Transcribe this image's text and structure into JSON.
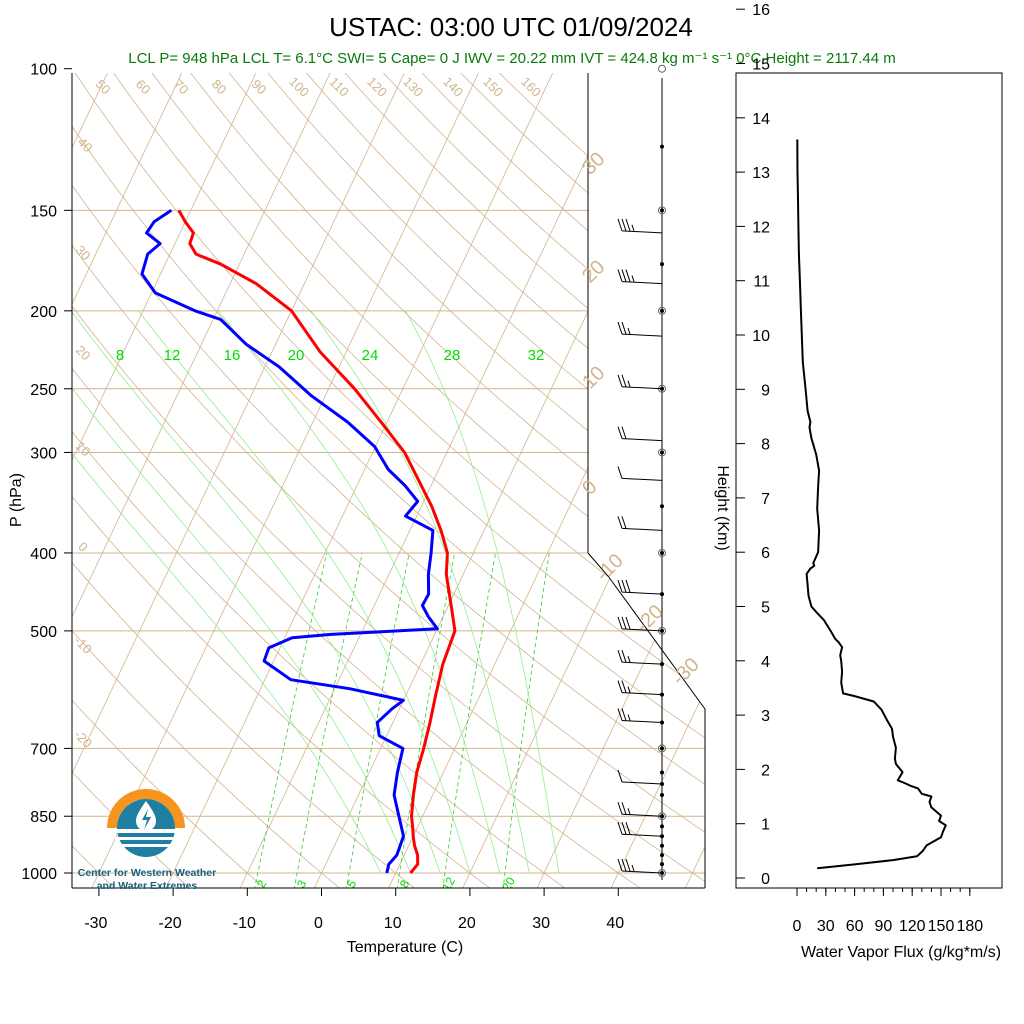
{
  "header": {
    "title": "USTAC: 03:00 UTC 01/09/2024",
    "subtitle": "LCL P= 948 hPa  LCL T= 6.1°C  SWI= 5  Cape= 0 J  IWV = 20.22 mm  IVT = 424.8 kg m⁻¹ s⁻¹  0°C Height = 2117.44 m"
  },
  "logo": {
    "line1": "Center for Western Weather",
    "line2": "and Water Extremes"
  },
  "colors": {
    "temperature": "#ff0000",
    "dewpoint": "#0000ff",
    "dry_adiabat": "#d2b48c",
    "isotherm": "#d2b48c",
    "moist_adiabat": "#90ee90",
    "mixing_ratio": "#32cd32",
    "flux": "#000000",
    "logo_orange": "#f7941d",
    "logo_blue": "#1f7fa3"
  },
  "chart_data": [
    {
      "type": "line",
      "subtype": "skew-t log-p",
      "xlabel": "Temperature (C)",
      "ylabel": "P (hPa)",
      "x_ticks": [
        -30,
        -20,
        -10,
        0,
        10,
        20,
        30,
        40
      ],
      "y_ticks": [
        100,
        150,
        200,
        250,
        300,
        400,
        500,
        700,
        850,
        1000
      ],
      "y_scale": "log",
      "ylim": [
        1000,
        100
      ],
      "xlim": [
        -35,
        47
      ],
      "series": [
        {
          "name": "Temperature",
          "color": "#ff0000",
          "points": [
            [
              12.0,
              1000
            ],
            [
              12.4,
              975
            ],
            [
              11.8,
              950
            ],
            [
              10.8,
              925
            ],
            [
              10.0,
              900
            ],
            [
              9.3,
              875
            ],
            [
              8.5,
              850
            ],
            [
              7.4,
              800
            ],
            [
              6.4,
              750
            ],
            [
              5.8,
              700
            ],
            [
              5.0,
              650
            ],
            [
              4.0,
              600
            ],
            [
              3.0,
              550
            ],
            [
              2.5,
              500
            ],
            [
              1.0,
              475
            ],
            [
              -0.6,
              450
            ],
            [
              -2.3,
              425
            ],
            [
              -3.5,
              400
            ],
            [
              -5.8,
              375
            ],
            [
              -8.6,
              350
            ],
            [
              -12.0,
              325
            ],
            [
              -15.7,
              300
            ],
            [
              -20.8,
              275
            ],
            [
              -26.5,
              250
            ],
            [
              -33.5,
              225
            ],
            [
              -40.0,
              200
            ],
            [
              -46.5,
              185
            ],
            [
              -52.5,
              175
            ],
            [
              -56.5,
              170
            ],
            [
              -58.0,
              165
            ],
            [
              -58.2,
              160
            ],
            [
              -60.0,
              155
            ],
            [
              -61.6,
              150
            ]
          ]
        },
        {
          "name": "Dewpoint",
          "color": "#0000ff",
          "points": [
            [
              8.8,
              1000
            ],
            [
              8.5,
              975
            ],
            [
              9.0,
              950
            ],
            [
              8.7,
              900
            ],
            [
              6.8,
              850
            ],
            [
              4.8,
              800
            ],
            [
              3.8,
              750
            ],
            [
              3.0,
              700
            ],
            [
              -1.0,
              675
            ],
            [
              -2.1,
              650
            ],
            [
              -1.0,
              625
            ],
            [
              0.0,
              610
            ],
            [
              -8.0,
              590
            ],
            [
              -16.5,
              575
            ],
            [
              -21.3,
              545
            ],
            [
              -21.5,
              525
            ],
            [
              -19.0,
              510
            ],
            [
              -14.0,
              505
            ],
            [
              0.0,
              497
            ],
            [
              -2.0,
              480
            ],
            [
              -3.5,
              465
            ],
            [
              -3.4,
              450
            ],
            [
              -4.7,
              425
            ],
            [
              -5.7,
              400
            ],
            [
              -6.9,
              375
            ],
            [
              -11.5,
              360
            ],
            [
              -10.8,
              345
            ],
            [
              -13.5,
              330
            ],
            [
              -16.8,
              315
            ],
            [
              -20.1,
              295
            ],
            [
              -25.3,
              275
            ],
            [
              -31.9,
              255
            ],
            [
              -38.0,
              235
            ],
            [
              -44.0,
              220
            ],
            [
              -49.0,
              205
            ],
            [
              -53.0,
              200
            ],
            [
              -59.5,
              190
            ],
            [
              -62.5,
              180
            ],
            [
              -63.0,
              170
            ],
            [
              -62.0,
              165
            ],
            [
              -64.5,
              160
            ],
            [
              -64.2,
              155
            ],
            [
              -62.6,
              150
            ]
          ]
        }
      ],
      "wind_barbs": [
        {
          "pressure": 1000,
          "speed_kt": 35
        },
        {
          "pressure": 900,
          "speed_kt": 30
        },
        {
          "pressure": 850,
          "speed_kt": 25
        },
        {
          "pressure": 775,
          "speed_kt": 10
        },
        {
          "pressure": 650,
          "speed_kt": 25
        },
        {
          "pressure": 600,
          "speed_kt": 25
        },
        {
          "pressure": 550,
          "speed_kt": 25
        },
        {
          "pressure": 500,
          "speed_kt": 30
        },
        {
          "pressure": 450,
          "speed_kt": 30
        },
        {
          "pressure": 375,
          "speed_kt": 20
        },
        {
          "pressure": 325,
          "speed_kt": 10
        },
        {
          "pressure": 290,
          "speed_kt": 20
        },
        {
          "pressure": 250,
          "speed_kt": 25
        },
        {
          "pressure": 215,
          "speed_kt": 25
        },
        {
          "pressure": 185,
          "speed_kt": 35
        },
        {
          "pressure": 160,
          "speed_kt": 35
        }
      ],
      "dry_adiabat_labels": [
        "50",
        "60",
        "70",
        "80",
        "90",
        "100",
        "110",
        "120",
        "130",
        "140",
        "150",
        "160",
        "40",
        "30",
        "20",
        "10",
        "0",
        "-10",
        "-20"
      ],
      "isotherm_labels": [
        "30",
        "20",
        "10",
        "0",
        "-10",
        "-20",
        "-30"
      ],
      "mixing_ratio_labels_top": [
        "8",
        "12",
        "16",
        "20",
        "24",
        "28",
        "32"
      ],
      "mixing_ratio_labels_bottom": [
        "2",
        "3",
        "5",
        "8",
        "12",
        "20"
      ]
    },
    {
      "type": "line",
      "xlabel": "Water Vapor Flux (g/kg*m/s)",
      "ylabel": "Height (Km)",
      "x_ticks": [
        0,
        30,
        60,
        90,
        120,
        150,
        180
      ],
      "y_ticks": [
        0,
        1,
        2,
        3,
        4,
        5,
        6,
        7,
        8,
        9,
        10,
        11,
        12,
        13,
        14,
        15,
        16
      ],
      "xlim": [
        0,
        180
      ],
      "ylim": [
        0,
        16.3
      ],
      "series": [
        {
          "name": "Water Vapor Flux",
          "color": "#000000",
          "points": [
            [
              21,
              0.18
            ],
            [
              60,
              0.25
            ],
            [
              100,
              0.33
            ],
            [
              125,
              0.4
            ],
            [
              128,
              0.45
            ],
            [
              131,
              0.5
            ],
            [
              135,
              0.6
            ],
            [
              150,
              0.75
            ],
            [
              152,
              0.85
            ],
            [
              155,
              0.97
            ],
            [
              148,
              1.05
            ],
            [
              150,
              1.15
            ],
            [
              140,
              1.3
            ],
            [
              138,
              1.4
            ],
            [
              140,
              1.5
            ],
            [
              130,
              1.55
            ],
            [
              126,
              1.65
            ],
            [
              118,
              1.7
            ],
            [
              112,
              1.75
            ],
            [
              105,
              1.8
            ],
            [
              110,
              1.95
            ],
            [
              103,
              2.1
            ],
            [
              102,
              2.2
            ],
            [
              103,
              2.4
            ],
            [
              100,
              2.6
            ],
            [
              99,
              2.75
            ],
            [
              94,
              2.9
            ],
            [
              88,
              3.1
            ],
            [
              80,
              3.25
            ],
            [
              60,
              3.35
            ],
            [
              48,
              3.4
            ],
            [
              46,
              3.6
            ],
            [
              47,
              3.8
            ],
            [
              46,
              4.0
            ],
            [
              45,
              4.1
            ],
            [
              47,
              4.25
            ],
            [
              43,
              4.35
            ],
            [
              40,
              4.4
            ],
            [
              35,
              4.55
            ],
            [
              28,
              4.75
            ],
            [
              20,
              4.9
            ],
            [
              15,
              5.0
            ],
            [
              12,
              5.2
            ],
            [
              11,
              5.4
            ],
            [
              10,
              5.6
            ],
            [
              14,
              5.7
            ],
            [
              18,
              5.75
            ],
            [
              17,
              5.8
            ],
            [
              22,
              6.0
            ],
            [
              23,
              6.4
            ],
            [
              21,
              6.8
            ],
            [
              22,
              7.2
            ],
            [
              23,
              7.5
            ],
            [
              20,
              7.8
            ],
            [
              15,
              8.1
            ],
            [
              13,
              8.3
            ],
            [
              14,
              8.4
            ],
            [
              11,
              8.6
            ],
            [
              9,
              9.0
            ],
            [
              6,
              9.5
            ],
            [
              5,
              10.0
            ],
            [
              4,
              10.5
            ],
            [
              3,
              11.0
            ],
            [
              2,
              11.5
            ],
            [
              1.5,
              12.0
            ],
            [
              1,
              12.5
            ],
            [
              0.5,
              13.0
            ],
            [
              0.3,
              13.6
            ]
          ]
        }
      ]
    }
  ]
}
